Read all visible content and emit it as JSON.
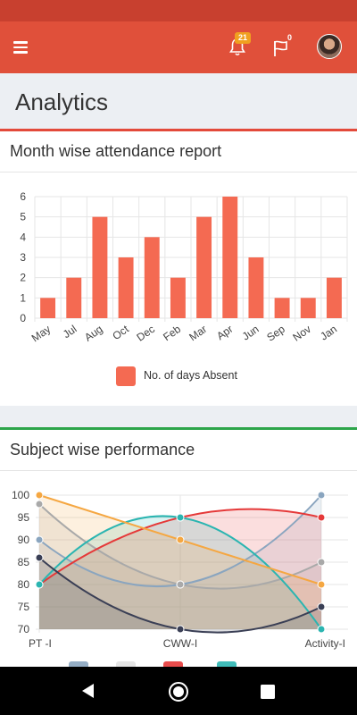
{
  "app_bar": {
    "notification_count": "21",
    "flag_count": "0",
    "icons": [
      "menu-icon",
      "bell-icon",
      "flag-icon",
      "avatar"
    ]
  },
  "page": {
    "title": "Analytics"
  },
  "attendance_card": {
    "title": "Month wise attendance report"
  },
  "performance_card": {
    "title": "Subject wise performance"
  },
  "colors": {
    "app_bar": "#e0503a",
    "card1_accent": "#e34a3b",
    "card2_accent": "#2da54a",
    "bar": "#f46a52"
  },
  "chart_data": [
    {
      "type": "bar",
      "categories": [
        "May",
        "Jul",
        "Aug",
        "Oct",
        "Dec",
        "Feb",
        "Mar",
        "Apr",
        "Jun",
        "Sep",
        "Nov",
        "Jan"
      ],
      "series": [
        {
          "name": "No. of days Absent",
          "color": "#f46a52",
          "values": [
            1,
            2,
            5,
            3,
            4,
            2,
            5,
            6,
            3,
            1,
            1,
            2
          ]
        }
      ],
      "ylim": [
        0,
        6
      ],
      "yticks": [
        0,
        1,
        2,
        3,
        4,
        5,
        6
      ],
      "grid": true,
      "legend": "bottom"
    },
    {
      "type": "area",
      "categories": [
        "PT -I",
        "CWW-I",
        "Activity-I"
      ],
      "series": [
        {
          "color": "#8aa5bf",
          "values": [
            90,
            80,
            100
          ]
        },
        {
          "color": "#a9a9a9",
          "values": [
            98,
            80,
            85
          ]
        },
        {
          "color": "#e53939",
          "values": [
            80,
            95,
            95
          ]
        },
        {
          "color": "#2bb5b1",
          "values": [
            80,
            95,
            70
          ]
        },
        {
          "color": "#f5a742",
          "values": [
            100,
            90,
            80
          ]
        },
        {
          "color": "#3a3f55",
          "values": [
            86,
            70,
            75
          ]
        }
      ],
      "ylim": [
        70,
        100
      ],
      "yticks": [
        70,
        75,
        80,
        85,
        90,
        95,
        100
      ],
      "grid": true,
      "legend": "bottom"
    }
  ]
}
